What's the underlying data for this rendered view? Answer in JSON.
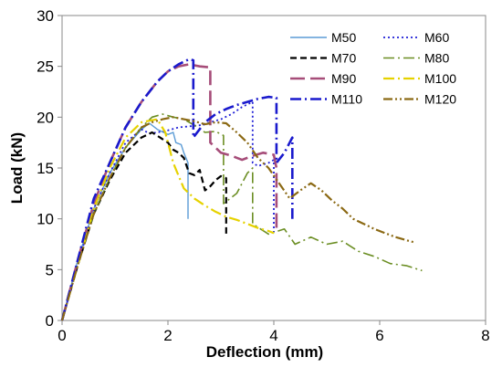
{
  "chart_data": {
    "type": "line",
    "xlabel": "Deflection (mm)",
    "ylabel": "Load (kN)",
    "xlim": [
      0,
      8
    ],
    "ylim": [
      0,
      30
    ],
    "x_ticks": [
      "0",
      "2",
      "4",
      "6",
      "8"
    ],
    "y_ticks": [
      "0",
      "5",
      "10",
      "15",
      "20",
      "25",
      "30"
    ],
    "grid": false,
    "legend_position": "top-right",
    "series": [
      {
        "name": "M50",
        "color": "#5b9bd5",
        "dash": "solid",
        "width": 1.4,
        "x": [
          0,
          0.3,
          0.6,
          0.9,
          1.2,
          1.5,
          1.65,
          1.8,
          2.0,
          2.1,
          2.15,
          2.25,
          2.3,
          2.38,
          2.38
        ],
        "y": [
          0,
          6,
          11,
          14.5,
          17,
          18.8,
          19.4,
          18.8,
          18.3,
          18.5,
          17.5,
          17.3,
          16.5,
          15.5,
          10
        ]
      },
      {
        "name": "M60",
        "color": "#1f1fd6",
        "dash": "dot",
        "width": 1.8,
        "x": [
          0,
          0.3,
          0.6,
          0.9,
          1.2,
          1.5,
          1.65,
          1.8,
          2.0,
          2.2,
          2.4,
          2.6,
          2.8,
          3.0,
          3.2,
          3.4,
          3.6,
          3.6,
          3.7,
          3.9,
          4.0,
          4.0
        ],
        "y": [
          0,
          5.5,
          11,
          14.5,
          17.5,
          18.8,
          18.4,
          18.5,
          18.7,
          19,
          19.1,
          19.2,
          19.5,
          19.8,
          20.3,
          21,
          21.5,
          15.5,
          15.2,
          15.5,
          15.8,
          8.7
        ]
      },
      {
        "name": "M70",
        "color": "#000000",
        "dash": "dash",
        "width": 2.2,
        "x": [
          0,
          0.3,
          0.6,
          0.9,
          1.2,
          1.5,
          1.7,
          1.85,
          2.0,
          2.1,
          2.2,
          2.3,
          2.4,
          2.5,
          2.6,
          2.7,
          2.8,
          2.9,
          3.0,
          3.1,
          3.1
        ],
        "y": [
          0,
          5.5,
          10.5,
          13.8,
          16.5,
          18,
          18.5,
          18,
          17.5,
          16.8,
          16.5,
          16,
          14.5,
          14.3,
          14.8,
          12.8,
          13.2,
          13.8,
          14.2,
          14,
          8.2
        ]
      },
      {
        "name": "M80",
        "color": "#6b8e23",
        "dash": "dashdot",
        "width": 1.6,
        "x": [
          0,
          0.3,
          0.6,
          0.9,
          1.2,
          1.5,
          1.7,
          1.9,
          2.1,
          2.3,
          2.5,
          2.7,
          2.9,
          3.05,
          3.05,
          3.3,
          3.5,
          3.6,
          3.6,
          3.9,
          4.2,
          4.4,
          4.7,
          5.0,
          5.3,
          5.6,
          5.9,
          6.2,
          6.5,
          6.8
        ],
        "y": [
          0,
          5.5,
          10.5,
          14,
          17,
          19,
          20,
          20.3,
          20,
          19.8,
          19.2,
          18.5,
          18.6,
          18.2,
          11.5,
          12.5,
          14.5,
          15,
          9.5,
          8.5,
          9,
          7.5,
          8.2,
          7.5,
          7.8,
          6.8,
          6.3,
          5.6,
          5.4,
          4.9
        ]
      },
      {
        "name": "M90",
        "color": "#a64d79",
        "dash": "longdash",
        "width": 2.6,
        "x": [
          0,
          0.3,
          0.6,
          0.9,
          1.2,
          1.5,
          1.8,
          2.0,
          2.2,
          2.4,
          2.6,
          2.8,
          2.8,
          3.0,
          3.2,
          3.4,
          3.6,
          3.8,
          4.0,
          4.05,
          4.05
        ],
        "y": [
          0,
          6,
          11.5,
          15.5,
          19,
          21.5,
          23.5,
          24.5,
          25,
          25.2,
          25,
          24.9,
          17.5,
          16.5,
          16.2,
          15.8,
          16.2,
          16.5,
          16.3,
          15,
          9
        ]
      },
      {
        "name": "M100",
        "color": "#e6d200",
        "dash": "dashdot",
        "width": 2.2,
        "x": [
          0,
          0.3,
          0.6,
          0.9,
          1.2,
          1.5,
          1.8,
          1.95,
          2.1,
          2.3,
          2.5,
          2.7,
          2.9,
          3.1,
          3.3,
          3.5,
          3.7,
          3.9,
          4.0
        ],
        "y": [
          0,
          5.5,
          11,
          15,
          18,
          19.5,
          19.8,
          18.5,
          15.5,
          13,
          12,
          11.3,
          10.7,
          10.2,
          9.9,
          9.5,
          9.1,
          8.8,
          8.6
        ]
      },
      {
        "name": "M110",
        "color": "#1a1acd",
        "dash": "dashdot",
        "width": 2.6,
        "x": [
          0,
          0.3,
          0.6,
          0.9,
          1.2,
          1.5,
          1.8,
          2.0,
          2.2,
          2.4,
          2.48,
          2.48,
          2.7,
          2.9,
          3.1,
          3.3,
          3.5,
          3.7,
          3.9,
          4.05,
          4.05,
          4.2,
          4.35,
          4.35
        ],
        "y": [
          0,
          6,
          12,
          15.5,
          19,
          21.5,
          23.5,
          24.5,
          25.2,
          25.7,
          25.6,
          18,
          19.5,
          20.3,
          20.8,
          21.2,
          21.5,
          21.8,
          22,
          21.9,
          15.5,
          16.5,
          18,
          10
        ]
      },
      {
        "name": "M120",
        "color": "#8b6914",
        "dash": "dashdotdot",
        "width": 2.2,
        "x": [
          0,
          0.3,
          0.6,
          0.9,
          1.2,
          1.5,
          1.7,
          1.9,
          2.1,
          2.3,
          2.5,
          2.7,
          2.9,
          3.1,
          3.3,
          3.5,
          3.7,
          3.9,
          4.1,
          4.3,
          4.5,
          4.7,
          4.9,
          5.1,
          5.3,
          5.5,
          5.7,
          5.9,
          6.1,
          6.3,
          6.5,
          6.65
        ],
        "y": [
          0,
          5.5,
          10.5,
          14,
          17,
          19,
          19.5,
          19.8,
          20,
          19.8,
          19.6,
          19.3,
          19.5,
          19.4,
          18.5,
          17.5,
          16,
          15,
          13.5,
          12,
          12.8,
          13.5,
          12.8,
          11.8,
          11,
          10,
          9.5,
          9,
          8.6,
          8.2,
          7.9,
          7.7
        ]
      }
    ]
  }
}
